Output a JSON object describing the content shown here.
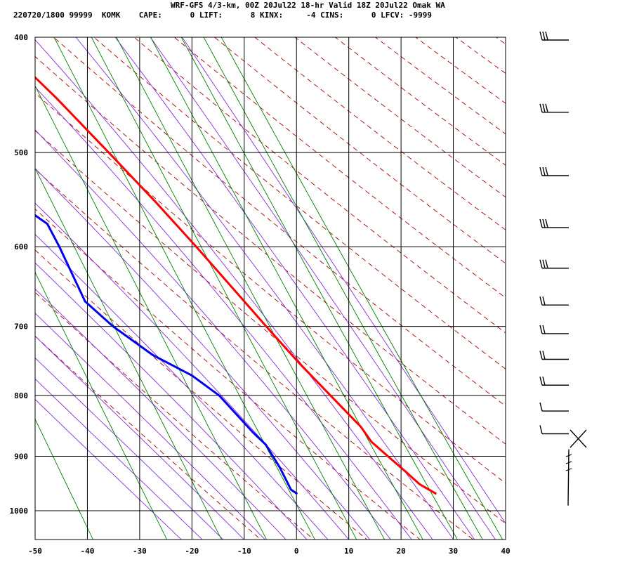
{
  "header": {
    "title": "WRF-GFS 4/3-km, 00Z 20Jul22 18-hr Valid 18Z 20Jul22 Omak WA",
    "params_line": "220720/1800 99999  KOMK    CAPE:      0 LIFT:      8 KINX:     -4 CINS:      0 LFCV: -9999"
  },
  "chart_data": {
    "type": "line",
    "title": "WRF-GFS 4/3-km, 00Z 20Jul22 18-hr Valid 18Z 20Jul22 Omak WA",
    "xlabel": "",
    "ylabel": "",
    "xlim": [
      -50,
      40
    ],
    "ylim": [
      1050,
      400
    ],
    "y_scale": "log",
    "grid": true,
    "x_ticks": [
      -50,
      -40,
      -30,
      -20,
      -10,
      0,
      10,
      20,
      30,
      40
    ],
    "y_ticks": [
      400,
      500,
      600,
      700,
      800,
      900,
      1000
    ],
    "series": [
      {
        "role": "temperature",
        "color": "#ff0000",
        "points": [
          [
            400,
            -23.0
          ],
          [
            450,
            -15.5
          ],
          [
            500,
            -9.5
          ],
          [
            550,
            -4.2
          ],
          [
            600,
            0.3
          ],
          [
            650,
            4.2
          ],
          [
            700,
            7.8
          ],
          [
            750,
            11.3
          ],
          [
            800,
            15.0
          ],
          [
            850,
            18.5
          ],
          [
            875,
            19.4
          ],
          [
            900,
            21.5
          ],
          [
            925,
            23.6
          ],
          [
            950,
            25.5
          ],
          [
            968,
            28.0
          ]
        ]
      },
      {
        "role": "dewpoint",
        "color": "#0000ee",
        "points": [
          [
            400,
            -41.7
          ],
          [
            460,
            -39.6
          ],
          [
            500,
            -35.8
          ],
          [
            540,
            -32.8
          ],
          [
            574,
            -26.5
          ],
          [
            600,
            -25.9
          ],
          [
            667,
            -25.0
          ],
          [
            700,
            -21.5
          ],
          [
            740,
            -16.0
          ],
          [
            770,
            -10.0
          ],
          [
            800,
            -6.3
          ],
          [
            860,
            -2.5
          ],
          [
            880,
            -1.0
          ],
          [
            920,
            0.0
          ],
          [
            960,
            0.5
          ],
          [
            968,
            1.4
          ]
        ]
      }
    ],
    "wind_barbs": {
      "pressures": [
        400,
        460,
        520,
        575,
        622,
        668,
        706,
        742,
        780,
        820,
        857,
        900,
        935,
        960
      ]
    },
    "background_lines": {
      "isotherm_color": "#000000",
      "dry_adiabat_color": "#aa0000",
      "moist_adiabat_color": "#8a2be2",
      "mixing_ratio_color": "#008000"
    }
  }
}
